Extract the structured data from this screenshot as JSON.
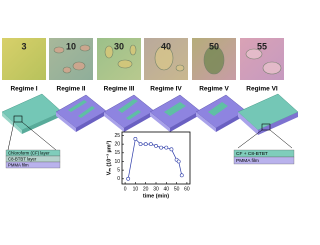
{
  "micrographs": {
    "labels": [
      "3",
      "10",
      "30",
      "40",
      "50",
      "55"
    ],
    "regimes": [
      "Regime I",
      "Regime II",
      "Regime III",
      "Regime IV",
      "Regime V",
      "Regime VI"
    ]
  },
  "left_layers": [
    "Chloroform (CF) layer",
    "C8-BTBT layer",
    "PMMA film"
  ],
  "right_layers": [
    "CF + C8-BTBT",
    "PMMA film"
  ],
  "chart_data": {
    "type": "line",
    "xlabel": "time (min)",
    "ylabel": "Vₘ (10⁻³ µm³)",
    "x": [
      3,
      10,
      15,
      20,
      25,
      30,
      35,
      40,
      45,
      50,
      52,
      55
    ],
    "series": [
      {
        "color": "#2b3aa8",
        "values": [
          0,
          23,
          20,
          20,
          20,
          19,
          18,
          18,
          17,
          11,
          10,
          2
        ]
      }
    ],
    "xlim": [
      -3,
      63
    ],
    "xticks": [
      0,
      10,
      20,
      30,
      40,
      50,
      60
    ],
    "ylim": [
      -3,
      27
    ],
    "yticks": [
      0,
      5,
      10,
      15,
      20,
      25
    ]
  }
}
